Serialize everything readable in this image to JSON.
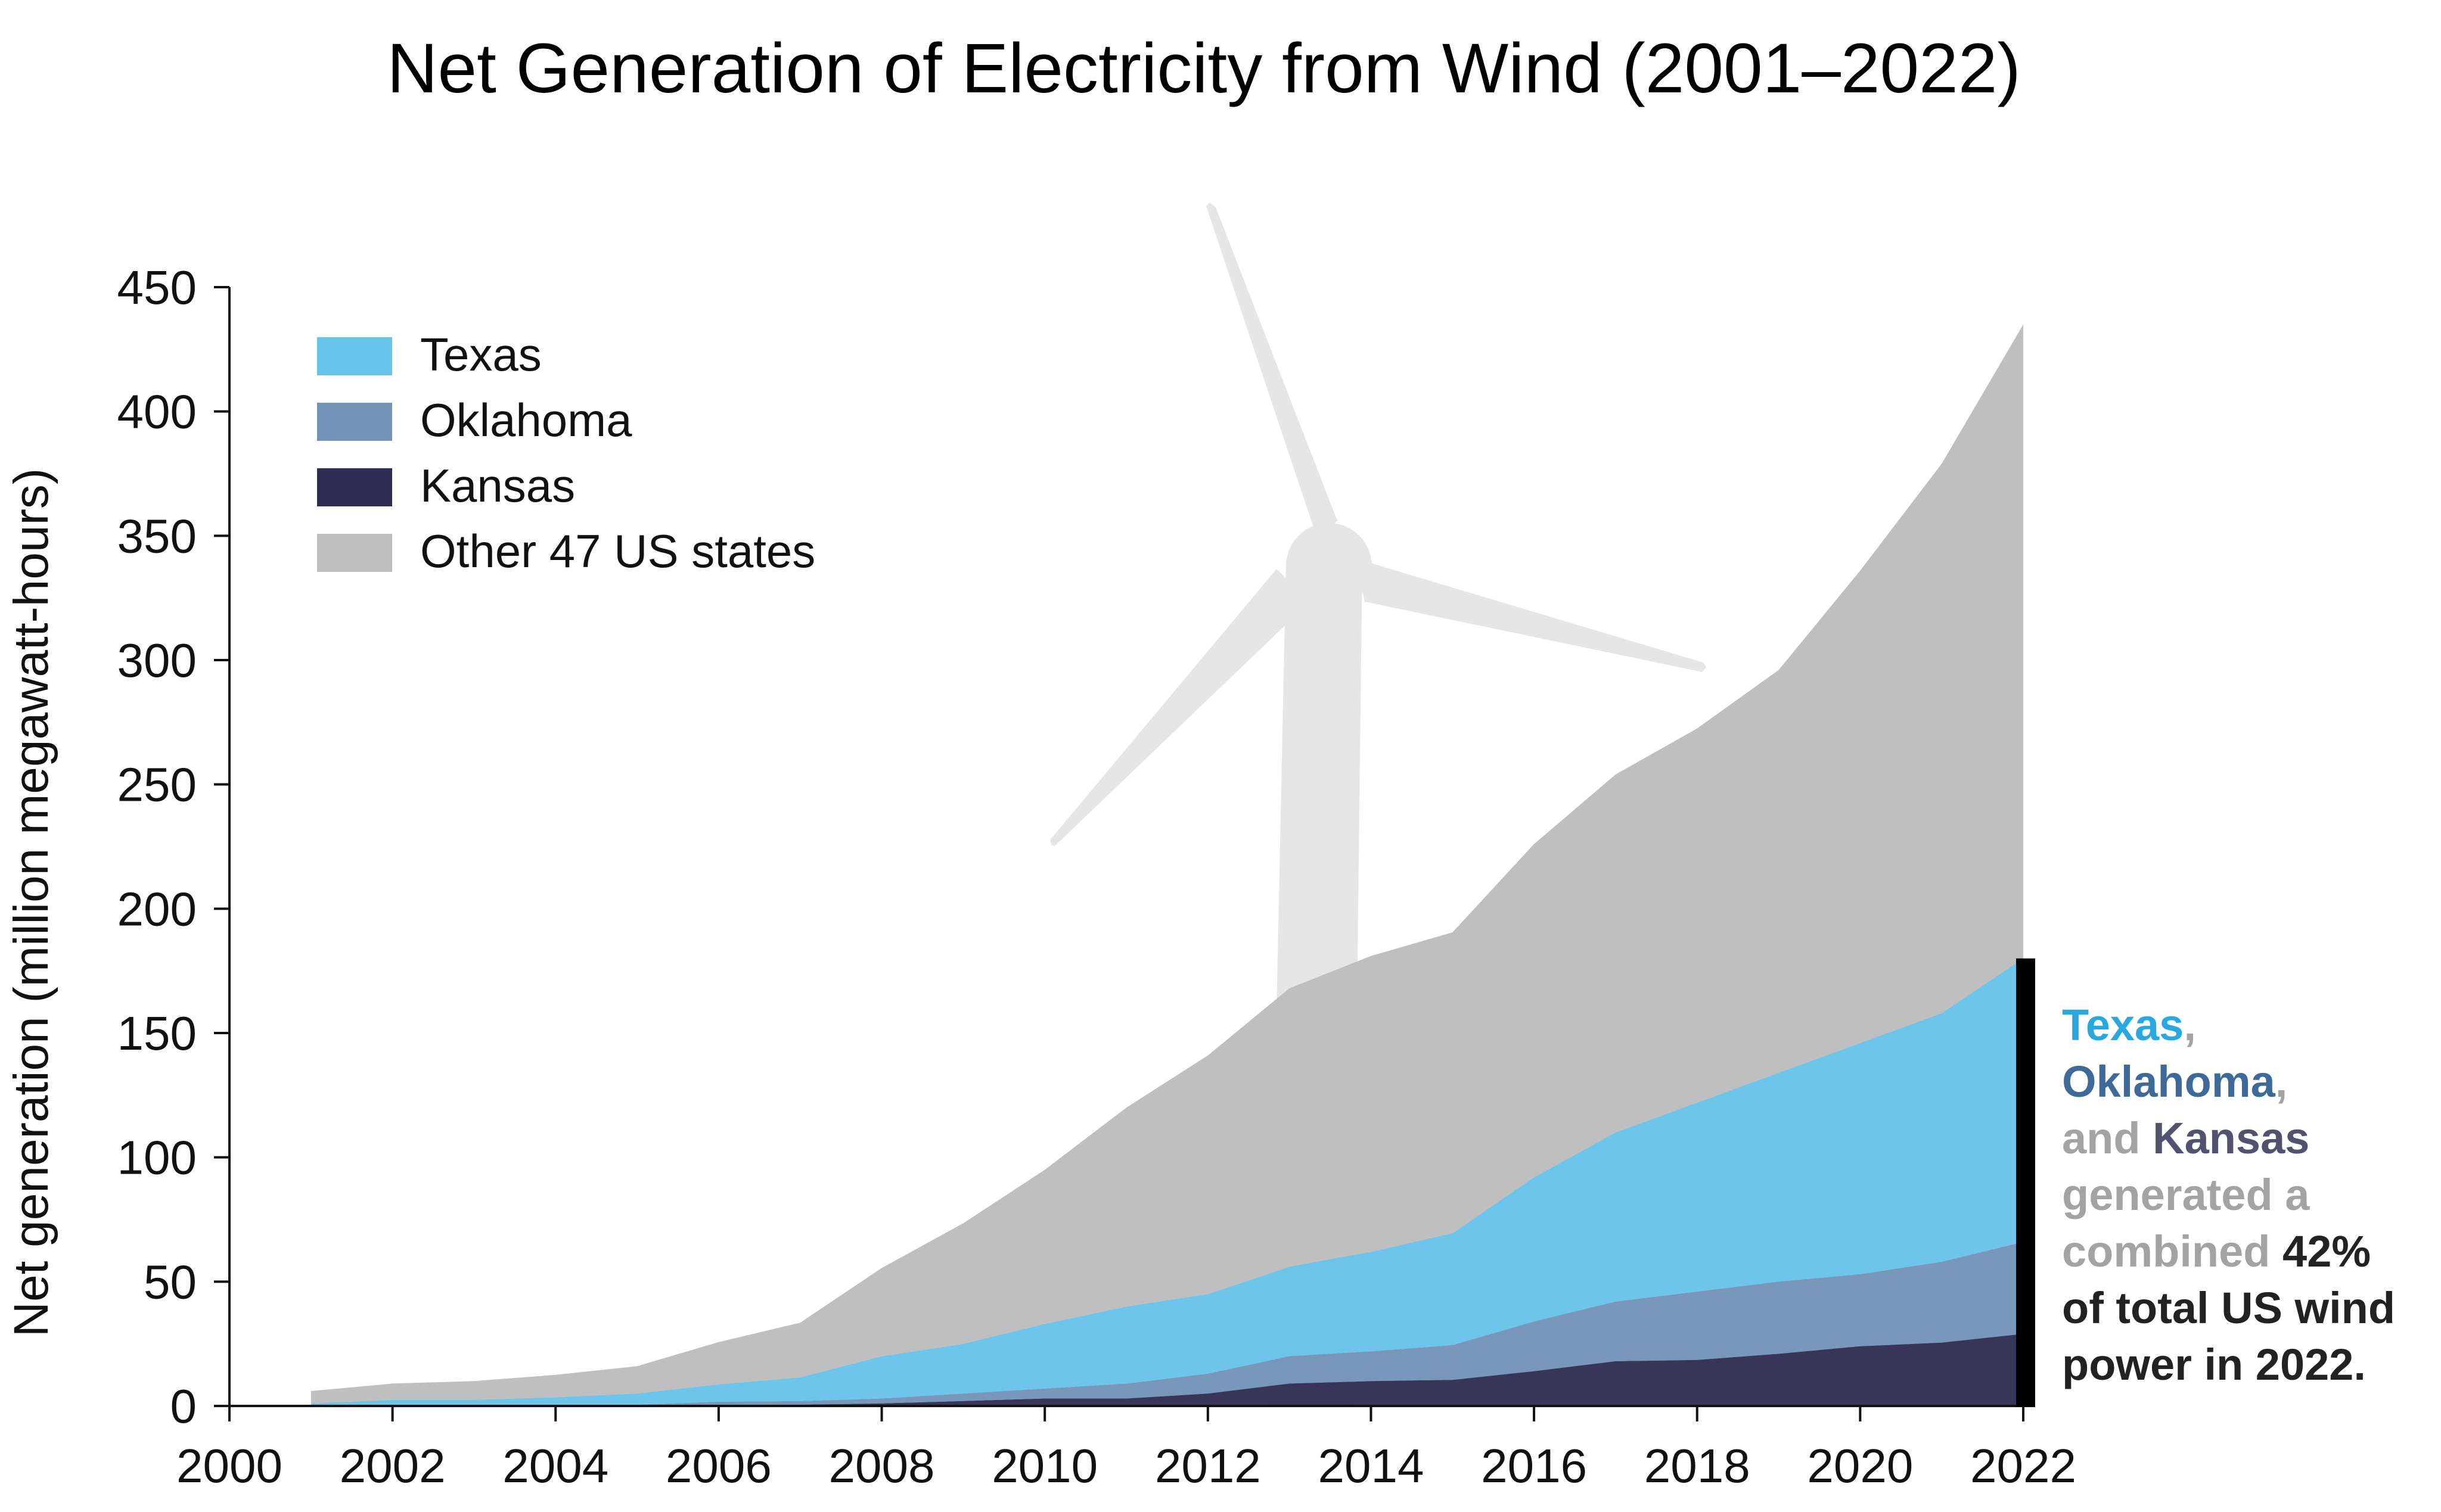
{
  "chart_data": {
    "type": "area",
    "stacked": true,
    "title": "Net Generation of Electricity from Wind (2001–2022)",
    "xlabel": "",
    "ylabel": "Net generation (million megawatt-hours)",
    "xlim": [
      2000,
      2022
    ],
    "ylim": [
      0,
      450
    ],
    "x_ticks": [
      "2000",
      "2002",
      "2004",
      "2006",
      "2008",
      "2010",
      "2012",
      "2014",
      "2016",
      "2018",
      "2020",
      "2022"
    ],
    "y_ticks": [
      "0",
      "50",
      "100",
      "150",
      "200",
      "250",
      "300",
      "350",
      "400",
      "450"
    ],
    "grid": false,
    "legend_position": "top-left",
    "x": [
      2001,
      2002,
      2003,
      2004,
      2005,
      2006,
      2007,
      2008,
      2009,
      2010,
      2011,
      2012,
      2013,
      2014,
      2015,
      2016,
      2017,
      2018,
      2019,
      2020,
      2021,
      2022
    ],
    "series": [
      {
        "name": "Kansas",
        "color": "#2f2e52",
        "values": [
          0.0,
          0.0,
          0.0,
          0.0,
          0.0,
          0.2,
          0.5,
          1.0,
          2.0,
          3.0,
          3.0,
          5.0,
          9.0,
          10.0,
          10.5,
          14.0,
          18.0,
          18.5,
          21.0,
          24.0,
          25.5,
          29.0
        ]
      },
      {
        "name": "Oklahoma",
        "color": "#7393b8",
        "values": [
          0.0,
          0.0,
          0.0,
          0.0,
          0.5,
          1.5,
          1.5,
          2.0,
          3.0,
          4.0,
          6.0,
          8.0,
          11.0,
          12.0,
          14.0,
          20.0,
          24.0,
          27.5,
          29.0,
          29.0,
          32.5,
          37.0
        ]
      },
      {
        "name": "Texas",
        "color": "#67c3ea",
        "values": [
          1.0,
          2.5,
          2.5,
          3.5,
          4.5,
          7.0,
          9.5,
          17.0,
          20.0,
          26.0,
          31.0,
          32.0,
          36.0,
          40.0,
          45.0,
          58.0,
          68.0,
          76.0,
          84.0,
          93.0,
          100.0,
          114.0
        ]
      },
      {
        "name": "Other 47 US states",
        "color": "#bebebe",
        "values": [
          5.0,
          6.5,
          7.5,
          9.0,
          11.0,
          17.0,
          22.0,
          35.5,
          48.5,
          62.0,
          80.0,
          96.0,
          112.0,
          119.0,
          121.0,
          134.0,
          144.0,
          150.5,
          162.0,
          190.0,
          221.0,
          255.0
        ]
      }
    ],
    "annotation": {
      "parts": [
        {
          "text": "Texas",
          "color": "#29a8df"
        },
        {
          "text": ",",
          "color": "#a3a3a3"
        },
        {
          "text": "Oklahoma",
          "color": "#3d6a99"
        },
        {
          "text": ",",
          "color": "#a3a3a3"
        },
        {
          "text": "and ",
          "color": "#a3a3a3"
        },
        {
          "text": "Kansas",
          "color": "#525170"
        },
        {
          "text": "generated a",
          "color": "#a3a3a3"
        },
        {
          "text": "combined ",
          "color": "#a3a3a3"
        },
        {
          "text": "42%",
          "color": "#222222"
        },
        {
          "text": "of total US wind",
          "color": "#222222"
        },
        {
          "text": "power in 2022.",
          "color": "#222222"
        }
      ],
      "bracket_range": [
        0,
        180
      ]
    }
  }
}
